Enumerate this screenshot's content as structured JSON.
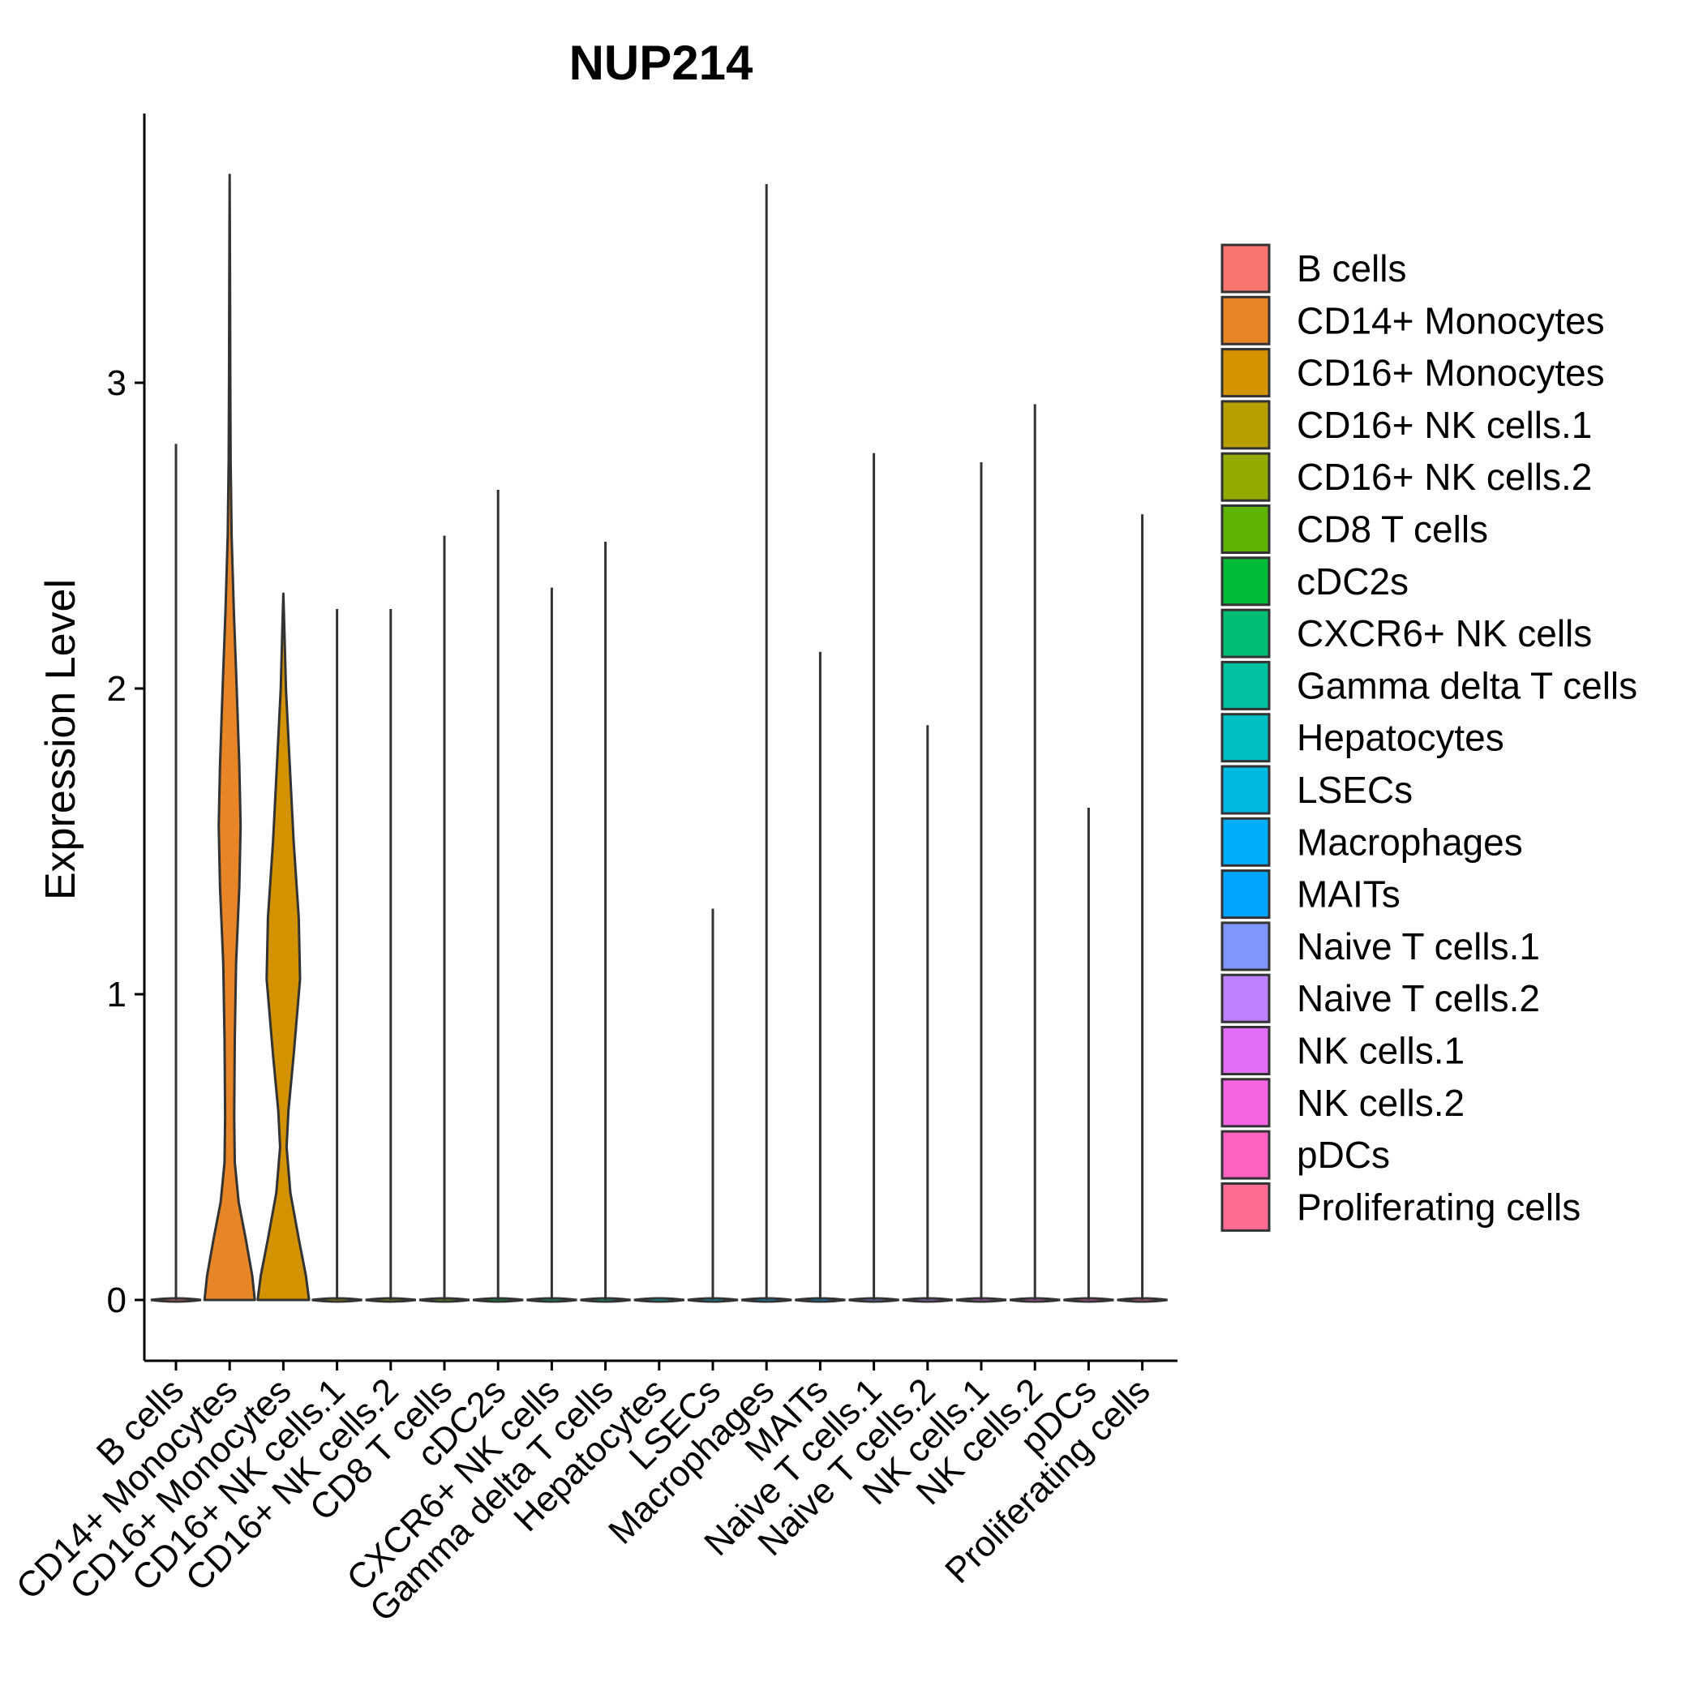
{
  "chart_data": {
    "type": "violin",
    "title": "NUP214",
    "xlabel": "",
    "ylabel": "Expression Level",
    "ylim": [
      -0.18,
      3.8
    ],
    "yticks": [
      0,
      1,
      2,
      3
    ],
    "categories": [
      "B cells",
      "CD14+ Monocytes",
      "CD16+ Monocytes",
      "CD16+ NK cells.1",
      "CD16+ NK cells.2",
      "CD8 T cells",
      "cDC2s",
      "CXCR6+ NK cells",
      "Gamma delta T cells",
      "Hepatocytes",
      "LSECs",
      "Macrophages",
      "MAITs",
      "Naive T cells.1",
      "Naive T cells.2",
      "NK cells.1",
      "NK cells.2",
      "pDCs",
      "Proliferating cells"
    ],
    "max_values": [
      2.8,
      3.68,
      2.31,
      2.26,
      2.26,
      2.5,
      2.65,
      2.33,
      2.48,
      0.0,
      1.28,
      3.65,
      2.12,
      2.77,
      1.88,
      2.74,
      2.93,
      1.61,
      2.57
    ],
    "violin_density_profiles": {
      "CD14+ Monocytes": [
        [
          0,
          0.78
        ],
        [
          0.08,
          0.7
        ],
        [
          0.2,
          0.5
        ],
        [
          0.32,
          0.28
        ],
        [
          0.45,
          0.16
        ],
        [
          0.6,
          0.14
        ],
        [
          0.85,
          0.16
        ],
        [
          1.1,
          0.2
        ],
        [
          1.35,
          0.3
        ],
        [
          1.55,
          0.34
        ],
        [
          1.75,
          0.3
        ],
        [
          2.0,
          0.22
        ],
        [
          2.25,
          0.13
        ],
        [
          2.5,
          0.06
        ],
        [
          2.75,
          0.03
        ],
        [
          3.0,
          0.02
        ],
        [
          3.3,
          0.012
        ],
        [
          3.68,
          0.0
        ]
      ],
      "CD16+ Monocytes": [
        [
          0,
          0.8
        ],
        [
          0.08,
          0.7
        ],
        [
          0.2,
          0.48
        ],
        [
          0.35,
          0.22
        ],
        [
          0.5,
          0.1
        ],
        [
          0.62,
          0.16
        ],
        [
          0.8,
          0.32
        ],
        [
          1.05,
          0.52
        ],
        [
          1.25,
          0.48
        ],
        [
          1.5,
          0.32
        ],
        [
          1.75,
          0.2
        ],
        [
          2.0,
          0.08
        ],
        [
          2.2,
          0.03
        ],
        [
          2.31,
          0.0
        ]
      ]
    },
    "colors": [
      "#F8766D",
      "#E88526",
      "#D39200",
      "#B79F00",
      "#93AA00",
      "#5EB300",
      "#00BA38",
      "#00BF74",
      "#00C19F",
      "#00BFC4",
      "#00B9E3",
      "#00ADFA",
      "#00A5FF",
      "#7F96FF",
      "#BF80FF",
      "#E26EF7",
      "#F564E3",
      "#FF61C3",
      "#FF6C91"
    ],
    "legend": {
      "position": "right",
      "entries": [
        "B cells",
        "CD14+ Monocytes",
        "CD16+ Monocytes",
        "CD16+ NK cells.1",
        "CD16+ NK cells.2",
        "CD8 T cells",
        "cDC2s",
        "CXCR6+ NK cells",
        "Gamma delta T cells",
        "Hepatocytes",
        "LSECs",
        "Macrophages",
        "MAITs",
        "Naive T cells.1",
        "Naive T cells.2",
        "NK cells.1",
        "NK cells.2",
        "pDCs",
        "Proliferating cells"
      ]
    },
    "grid": false
  }
}
